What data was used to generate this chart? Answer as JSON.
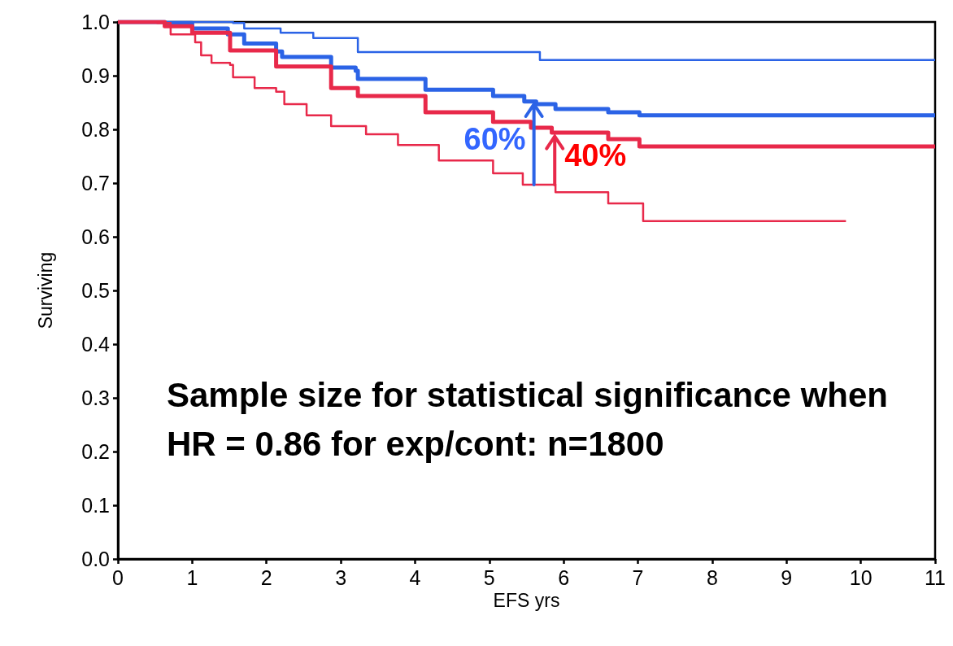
{
  "chart_data": {
    "type": "step",
    "xlabel": "EFS yrs",
    "ylabel": "Surviving",
    "xlim": [
      0,
      11
    ],
    "xticks": [
      0,
      1,
      2,
      3,
      4,
      5,
      6,
      7,
      8,
      9,
      10,
      11
    ],
    "ylim": [
      0,
      1.0
    ],
    "yticks": [
      {
        "value": 0,
        "label": "0.0"
      },
      0.1,
      0.2,
      0.3,
      0.4,
      0.5,
      0.6,
      0.7,
      0.8,
      0.9,
      {
        "value": 1,
        "label": "1.0"
      }
    ],
    "grid": false,
    "marker": "none",
    "line_style": "solid",
    "series": [
      {
        "color": "#2b63e6",
        "x": [
          0,
          1.55,
          1.7,
          2.19,
          2.63,
          3.23,
          5.68,
          11
        ],
        "values": [
          1.0,
          0.998,
          0.988,
          0.98,
          0.97,
          0.944,
          0.929,
          0.929
        ]
      },
      {
        "color": "#2b63e6",
        "x": [
          0,
          0.63,
          1.0,
          1.48,
          1.7,
          2.13,
          2.21,
          2.87,
          3.2,
          3.23,
          4.14,
          5.05,
          5.47,
          5.63,
          5.89,
          6.6,
          7.02,
          11
        ],
        "values": [
          1.0,
          0.998,
          0.988,
          0.977,
          0.96,
          0.945,
          0.935,
          0.915,
          0.909,
          0.894,
          0.874,
          0.862,
          0.852,
          0.847,
          0.838,
          0.832,
          0.826,
          0.826
        ]
      },
      {
        "color": "#e8294a",
        "x": [
          0,
          0.63,
          1.0,
          1.51,
          2.13,
          2.87,
          3.23,
          4.14,
          5.05,
          5.56,
          5.84,
          6.6,
          7.02,
          11
        ],
        "values": [
          1.0,
          0.992,
          0.98,
          0.947,
          0.917,
          0.877,
          0.862,
          0.832,
          0.814,
          0.803,
          0.794,
          0.782,
          0.768,
          0.768
        ]
      },
      {
        "color": "#e8294a",
        "x": [
          0,
          0.53,
          0.71,
          1.04,
          1.12,
          1.26,
          1.51,
          1.55,
          1.84,
          2.13,
          2.24,
          2.54,
          2.87,
          3.34,
          3.77,
          4.32,
          5.05,
          5.45,
          5.89,
          6.6,
          7.07,
          9.8
        ],
        "values": [
          1.0,
          0.998,
          0.977,
          0.962,
          0.938,
          0.924,
          0.92,
          0.897,
          0.877,
          0.87,
          0.847,
          0.826,
          0.806,
          0.791,
          0.771,
          0.742,
          0.718,
          0.697,
          0.683,
          0.662,
          0.629,
          0.629
        ]
      }
    ],
    "annotations": [
      {
        "text": "60%",
        "x": 5.6,
        "y": 0.85
      },
      {
        "text": "40%",
        "x": 5.88,
        "y": 0.79
      },
      "Sample size for statistical significance when HR = 0.86 for exp/cont: n=1800"
    ]
  }
}
